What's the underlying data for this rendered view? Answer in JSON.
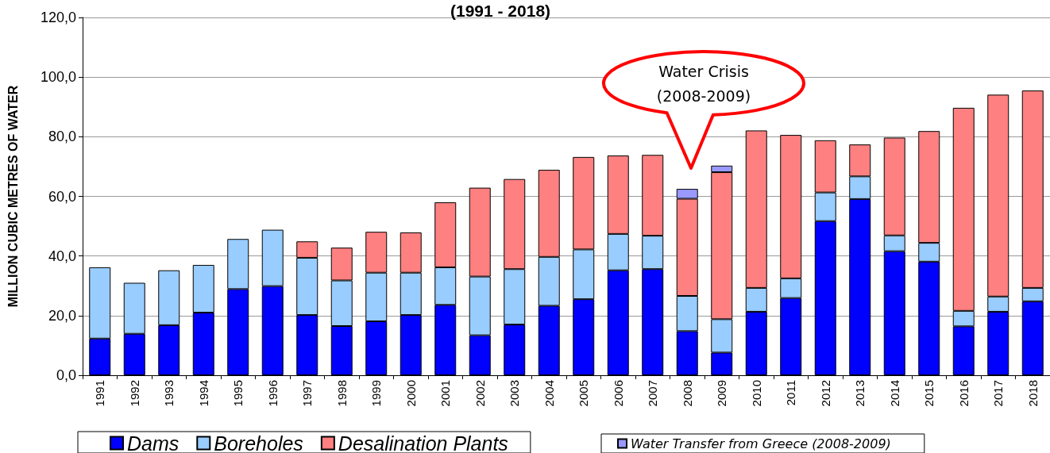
{
  "chart_data": {
    "type": "bar",
    "stacked": true,
    "title": "(1991 - 2018)",
    "ylabel": "MILLION CUBIC METRES OF WATER",
    "categories": [
      "1991",
      "1992",
      "1993",
      "1994",
      "1995",
      "1996",
      "1997",
      "1998",
      "1999",
      "2000",
      "2001",
      "2002",
      "2003",
      "2004",
      "2005",
      "2006",
      "2007",
      "2008",
      "2009",
      "2010",
      "2011",
      "2012",
      "2013",
      "2014",
      "2015",
      "2016",
      "2017",
      "2018"
    ],
    "series": [
      {
        "name": "Dams",
        "color": "#0000ff",
        "values": [
          12.3,
          13.9,
          16.8,
          21.0,
          28.9,
          29.9,
          20.2,
          16.5,
          18.1,
          20.2,
          23.6,
          13.4,
          17.0,
          23.3,
          25.5,
          35.2,
          35.6,
          14.8,
          7.6,
          21.3,
          25.9,
          51.7,
          59.1,
          41.6,
          38.1,
          16.4,
          21.3,
          24.8
        ]
      },
      {
        "name": "Boreholes",
        "color": "#99ccff",
        "values": [
          23.9,
          17.1,
          18.4,
          16.0,
          16.8,
          18.9,
          19.2,
          15.3,
          16.3,
          14.2,
          12.6,
          19.7,
          18.6,
          16.4,
          16.7,
          12.2,
          11.2,
          11.8,
          11.2,
          8.0,
          6.6,
          9.6,
          7.6,
          5.3,
          6.3,
          5.2,
          5.1,
          4.5
        ]
      },
      {
        "name": "Desalination Plants",
        "color": "#ff8080",
        "values": [
          null,
          null,
          null,
          null,
          null,
          null,
          5.5,
          11.0,
          13.7,
          13.5,
          21.8,
          29.8,
          30.2,
          29.2,
          31.0,
          26.3,
          27.1,
          32.6,
          49.3,
          52.8,
          48.1,
          17.5,
          10.7,
          32.8,
          37.5,
          68.1,
          67.7,
          66.2
        ]
      },
      {
        "name": "Water Transfer from Greece (2008-2009)",
        "color": "#9999ff",
        "values": [
          null,
          null,
          null,
          null,
          null,
          null,
          null,
          null,
          null,
          null,
          null,
          null,
          null,
          null,
          null,
          null,
          null,
          3.3,
          2.2,
          null,
          null,
          null,
          null,
          null,
          null,
          null,
          null,
          null
        ]
      }
    ],
    "ylim": [
      0,
      120
    ],
    "yticks": [
      {
        "value": 0,
        "label": "0,0"
      },
      {
        "value": 20,
        "label": "20,0"
      },
      {
        "value": 40,
        "label": "40,0"
      },
      {
        "value": 60,
        "label": "60,0"
      },
      {
        "value": 80,
        "label": "80,0"
      },
      {
        "value": 100,
        "label": "100,0"
      },
      {
        "value": 120,
        "label": "120,0"
      }
    ],
    "grid": "y",
    "legend": "bottom",
    "annotations": [
      "Water Crisis\n(2008-2009)"
    ]
  }
}
